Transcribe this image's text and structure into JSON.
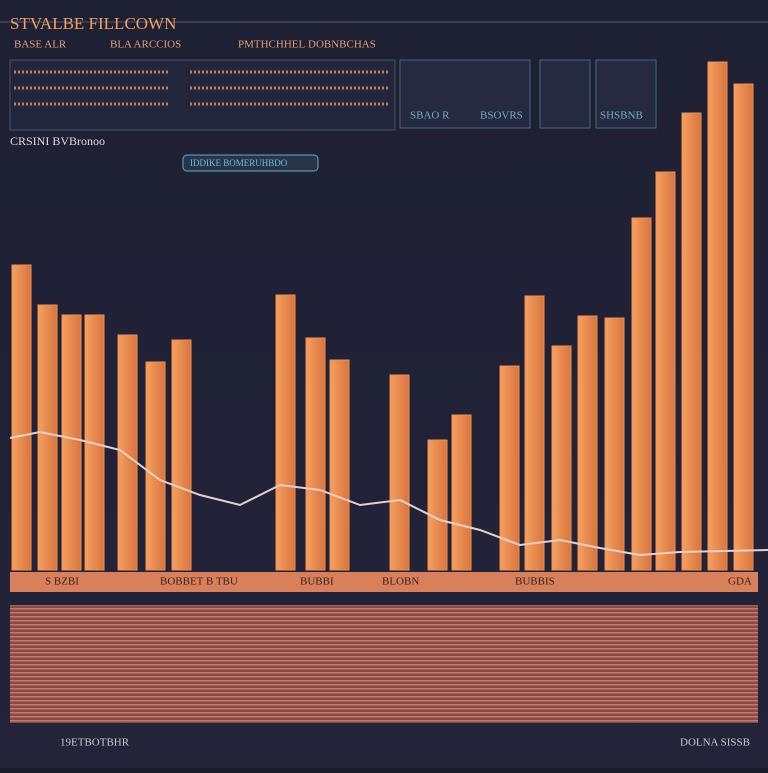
{
  "header": {
    "title": "STVALBE FILLCOWN",
    "tabs": [
      "BASE ALR",
      "BLA ARCCIOS",
      "PMTHCHHEL",
      "DOBNBCHAS"
    ]
  },
  "panels": [
    "SBAO R",
    "BSOVRS",
    "SHSBNB"
  ],
  "section_label": "CRSINI BVBronoo",
  "badge": "IDDIKE BOMERUHBDO",
  "chart": {
    "type": "bar",
    "values": [
      305,
      265,
      255,
      255,
      235,
      208,
      230,
      275,
      232,
      210,
      195,
      130,
      155,
      204,
      274,
      224,
      254,
      252,
      352,
      398,
      457,
      508,
      486
    ],
    "color": "#f0904e"
  },
  "strip_labels": [
    "S BZBI",
    "BOBBET B TBU",
    "BUBBI",
    "BLOBN",
    "BUBBIS",
    "GDA"
  ],
  "footer": {
    "left": "19ETBOTBHR",
    "right": "DOLNA SISSB"
  }
}
